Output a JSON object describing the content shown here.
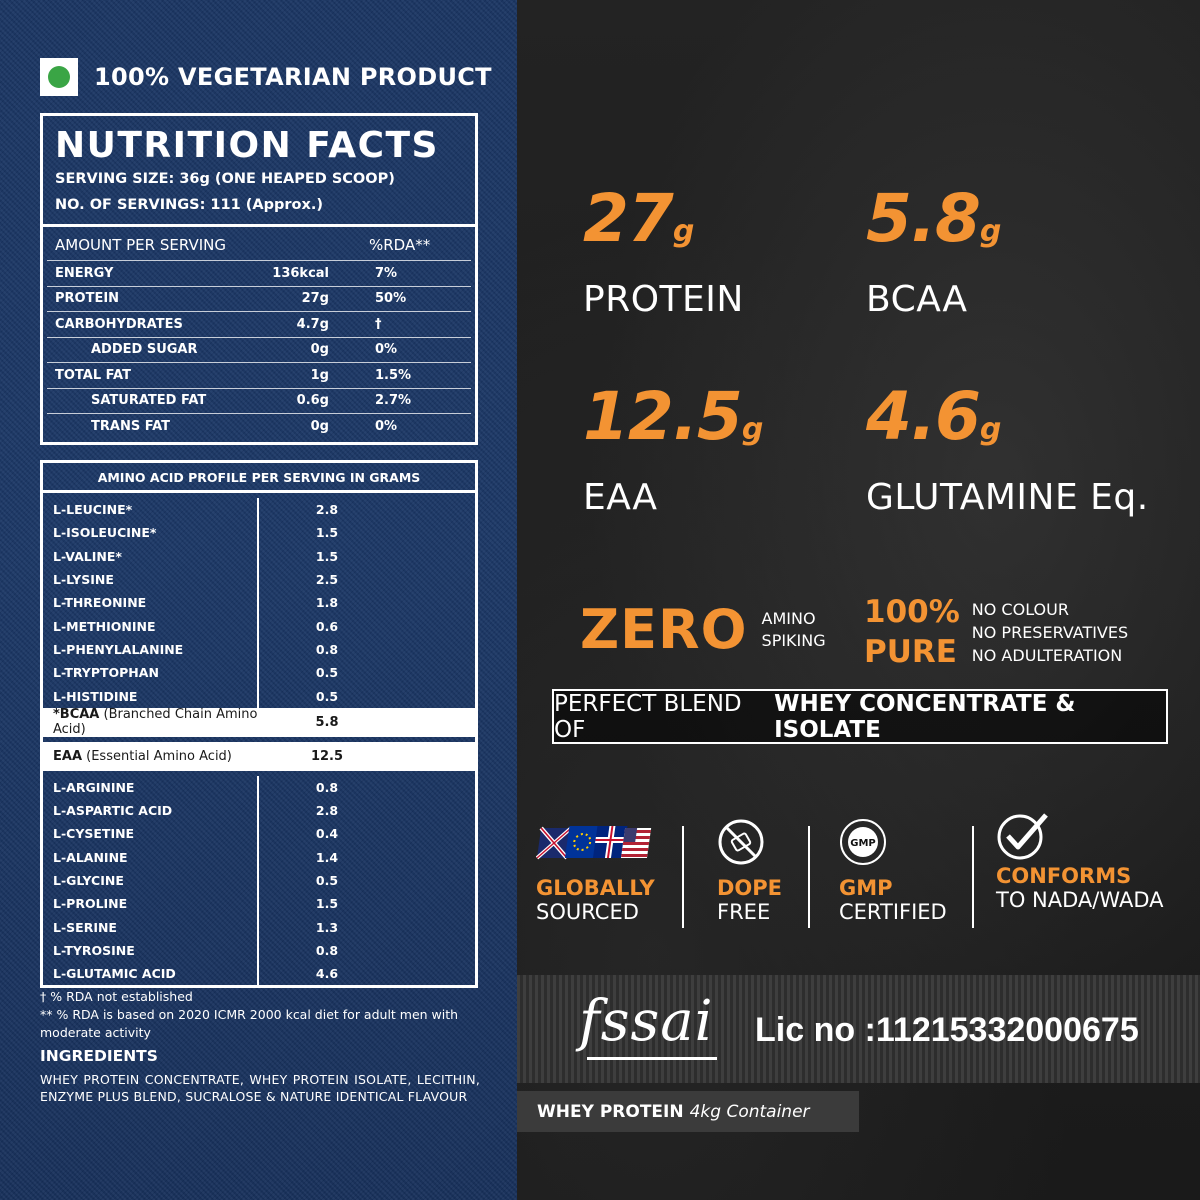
{
  "veg_label": "100% VEGETARIAN PRODUCT",
  "colors": {
    "accent": "#f39333",
    "veg_green": "#3aa545",
    "denim": "#1a3563"
  },
  "nutrition": {
    "title": "NUTRITION FACTS",
    "serving_size": "SERVING SIZE: 36g (ONE HEAPED SCOOP)",
    "servings": "NO. OF SERVINGS: 111 (Approx.)",
    "header": {
      "amount": "AMOUNT PER SERVING",
      "rda": "%RDA**"
    },
    "rows": [
      {
        "name": "ENERGY",
        "value": "136kcal",
        "rda": "7%"
      },
      {
        "name": "PROTEIN",
        "value": "27g",
        "rda": "50%"
      },
      {
        "name": "CARBOHYDRATES",
        "value": "4.7g",
        "rda": "†"
      },
      {
        "name": "ADDED SUGAR",
        "value": "0g",
        "rda": "0%"
      },
      {
        "name": "TOTAL FAT",
        "value": "1g",
        "rda": "1.5%"
      },
      {
        "name": "SATURATED FAT",
        "value": "0.6g",
        "rda": "2.7%"
      },
      {
        "name": "TRANS FAT",
        "value": "0g",
        "rda": "0%"
      }
    ]
  },
  "amino": {
    "title": "AMINO ACID PROFILE PER SERVING IN GRAMS",
    "group1": [
      {
        "name": "L-LEUCINE*",
        "value": "2.8"
      },
      {
        "name": "L-ISOLEUCINE*",
        "value": "1.5"
      },
      {
        "name": "L-VALINE*",
        "value": "1.5"
      },
      {
        "name": "L-LYSINE",
        "value": "2.5"
      },
      {
        "name": "L-THREONINE",
        "value": "1.8"
      },
      {
        "name": "L-METHIONINE",
        "value": "0.6"
      },
      {
        "name": "L-PHENYLALANINE",
        "value": "0.8"
      },
      {
        "name": "L-TRYPTOPHAN",
        "value": "0.5"
      },
      {
        "name": "L-HISTIDINE",
        "value": "0.5"
      }
    ],
    "bcaa": {
      "label": "*BCAA",
      "desc": " (Branched Chain Amino Acid)",
      "value": "5.8"
    },
    "eaa": {
      "label": "EAA",
      "desc": " (Essential Amino Acid)",
      "value": "12.5"
    },
    "group2": [
      {
        "name": "L-ARGININE",
        "value": "0.8"
      },
      {
        "name": "L-ASPARTIC ACID",
        "value": "2.8"
      },
      {
        "name": "L-CYSETINE",
        "value": "0.4"
      },
      {
        "name": "L-ALANINE",
        "value": "1.4"
      },
      {
        "name": "L-GLYCINE",
        "value": "0.5"
      },
      {
        "name": "L-PROLINE",
        "value": "1.5"
      },
      {
        "name": "L-SERINE",
        "value": "1.3"
      },
      {
        "name": "L-TYROSINE",
        "value": "0.8"
      },
      {
        "name": "L-GLUTAMIC ACID",
        "value": "4.6"
      }
    ]
  },
  "footnotes": {
    "note1": "† % RDA not established",
    "note2": "** % RDA is based on 2020 ICMR 2000 kcal diet for adult men with moderate activity",
    "ingredients_heading": "INGREDIENTS",
    "ingredients_text": "WHEY PROTEIN CONCENTRATE, WHEY PROTEIN ISOLATE, LECITHIN, ENZYME PLUS BLEND, SUCRALOSE & NATURE IDENTICAL FLAVOUR"
  },
  "stats": [
    {
      "value": "27",
      "unit": "g",
      "label": "PROTEIN"
    },
    {
      "value": "5.8",
      "unit": "g",
      "label": "BCAA"
    },
    {
      "value": "12.5",
      "unit": "g",
      "label": "EAA"
    },
    {
      "value": "4.6",
      "unit": "g",
      "label": "GLUTAMINE Eq."
    }
  ],
  "zero": {
    "big": "ZERO",
    "line1": "AMINO",
    "line2": "SPIKING"
  },
  "pure": {
    "big1": "100%",
    "big2": "PURE",
    "line1": "NO COLOUR",
    "line2": "NO PRESERVATIVES",
    "line3": "NO ADULTERATION"
  },
  "blend": {
    "prefix": "PERFECT BLEND OF",
    "bold": "WHEY CONCENTRATE & ISOLATE"
  },
  "badges": [
    {
      "icon": "flags-icon",
      "t1": "GLOBALLY",
      "t2": "SOURCED"
    },
    {
      "icon": "no-dope-icon",
      "t1": "DOPE",
      "t2": "FREE"
    },
    {
      "icon": "gmp-seal-icon",
      "t1": "GMP",
      "t2": "CERTIFIED"
    },
    {
      "icon": "check-circle-icon",
      "t1": "CONFORMS",
      "t2": "TO NADA/WADA"
    }
  ],
  "gmp_seal_text": "GMP",
  "fssai": {
    "logo": "fssai",
    "license": "Lic no :11215332000675"
  },
  "container": {
    "bold": "WHEY PROTEIN",
    "size": "4kg Container"
  }
}
